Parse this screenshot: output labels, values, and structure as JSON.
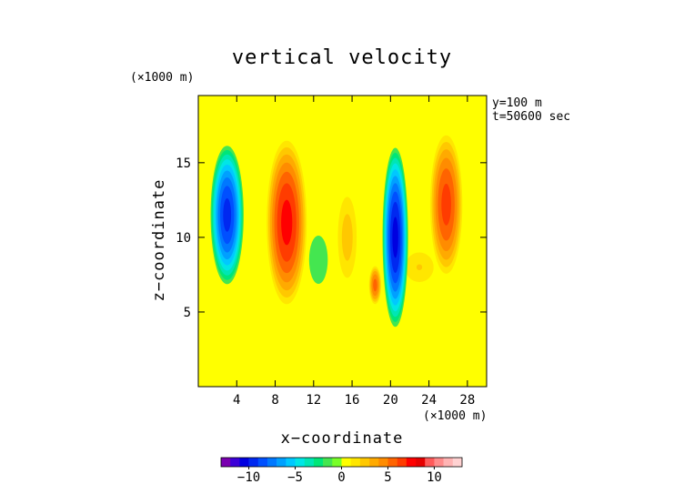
{
  "chart_data": {
    "type": "heatmap",
    "title": "vertical velocity",
    "xlabel": "x−coordinate",
    "ylabel": "z−coordinate",
    "x_unit": "(×1000 m)",
    "y_unit": "(×1000 m)",
    "annotations": [
      "y=100 m",
      "t=50600 sec"
    ],
    "xlim": [
      0,
      30
    ],
    "ylim": [
      0,
      19.5
    ],
    "x_ticks": [
      4,
      8,
      12,
      16,
      20,
      24,
      28
    ],
    "y_ticks": [
      5,
      10,
      15
    ],
    "x_tick_labels": [
      "4",
      "8",
      "12",
      "16",
      "20",
      "24",
      "28"
    ],
    "y_tick_labels": [
      "5",
      "10",
      "15"
    ],
    "background_level": 0,
    "contours": [
      {
        "name": "updraft-1",
        "x": 9.2,
        "z": 11.0,
        "sx": 1.6,
        "sz": 4.2,
        "peak": 7.5
      },
      {
        "name": "updraft-2",
        "x": 25.8,
        "z": 12.2,
        "sx": 1.3,
        "sz": 3.6,
        "peak": 6.5
      },
      {
        "name": "updraft-3",
        "x": 15.5,
        "z": 10.0,
        "sx": 0.9,
        "sz": 2.5,
        "peak": 2.5
      },
      {
        "name": "updraft-4",
        "x": 18.4,
        "z": 6.8,
        "sx": 0.5,
        "sz": 1.0,
        "peak": 5.5
      },
      {
        "name": "updraft-5",
        "x": 23.0,
        "z": 8.0,
        "sx": 1.5,
        "sz": 1.0,
        "peak": 2.0
      },
      {
        "name": "downdraft-1",
        "x": 3.0,
        "z": 11.5,
        "sx": 1.3,
        "sz": 3.5,
        "peak": -9.5
      },
      {
        "name": "downdraft-2",
        "x": 20.5,
        "z": 10.0,
        "sx": 1.0,
        "sz": 4.5,
        "peak": -10.5
      },
      {
        "name": "downdraft-3",
        "x": 12.5,
        "z": 8.5,
        "sx": 1.2,
        "sz": 2.0,
        "peak": -1.5
      }
    ],
    "colorbar": {
      "min": -13,
      "max": 13,
      "ticks": [
        -10,
        -5,
        0,
        5,
        10
      ],
      "tick_labels": [
        "−10",
        "−5",
        "0",
        "5",
        "10"
      ],
      "colors": [
        "#7a00b0",
        "#3c00d8",
        "#0000e0",
        "#0028f0",
        "#0050ff",
        "#0078ff",
        "#00a0ff",
        "#00c8ff",
        "#00e6e6",
        "#00e6b4",
        "#00e678",
        "#44e650",
        "#78ff28",
        "#ffff00",
        "#ffe600",
        "#ffc800",
        "#ffaa00",
        "#ff8c00",
        "#ff6400",
        "#ff3c00",
        "#ff0000",
        "#e60000",
        "#ff5a5a",
        "#ff8c8c",
        "#ffb4b4",
        "#ffd2d2"
      ]
    }
  }
}
